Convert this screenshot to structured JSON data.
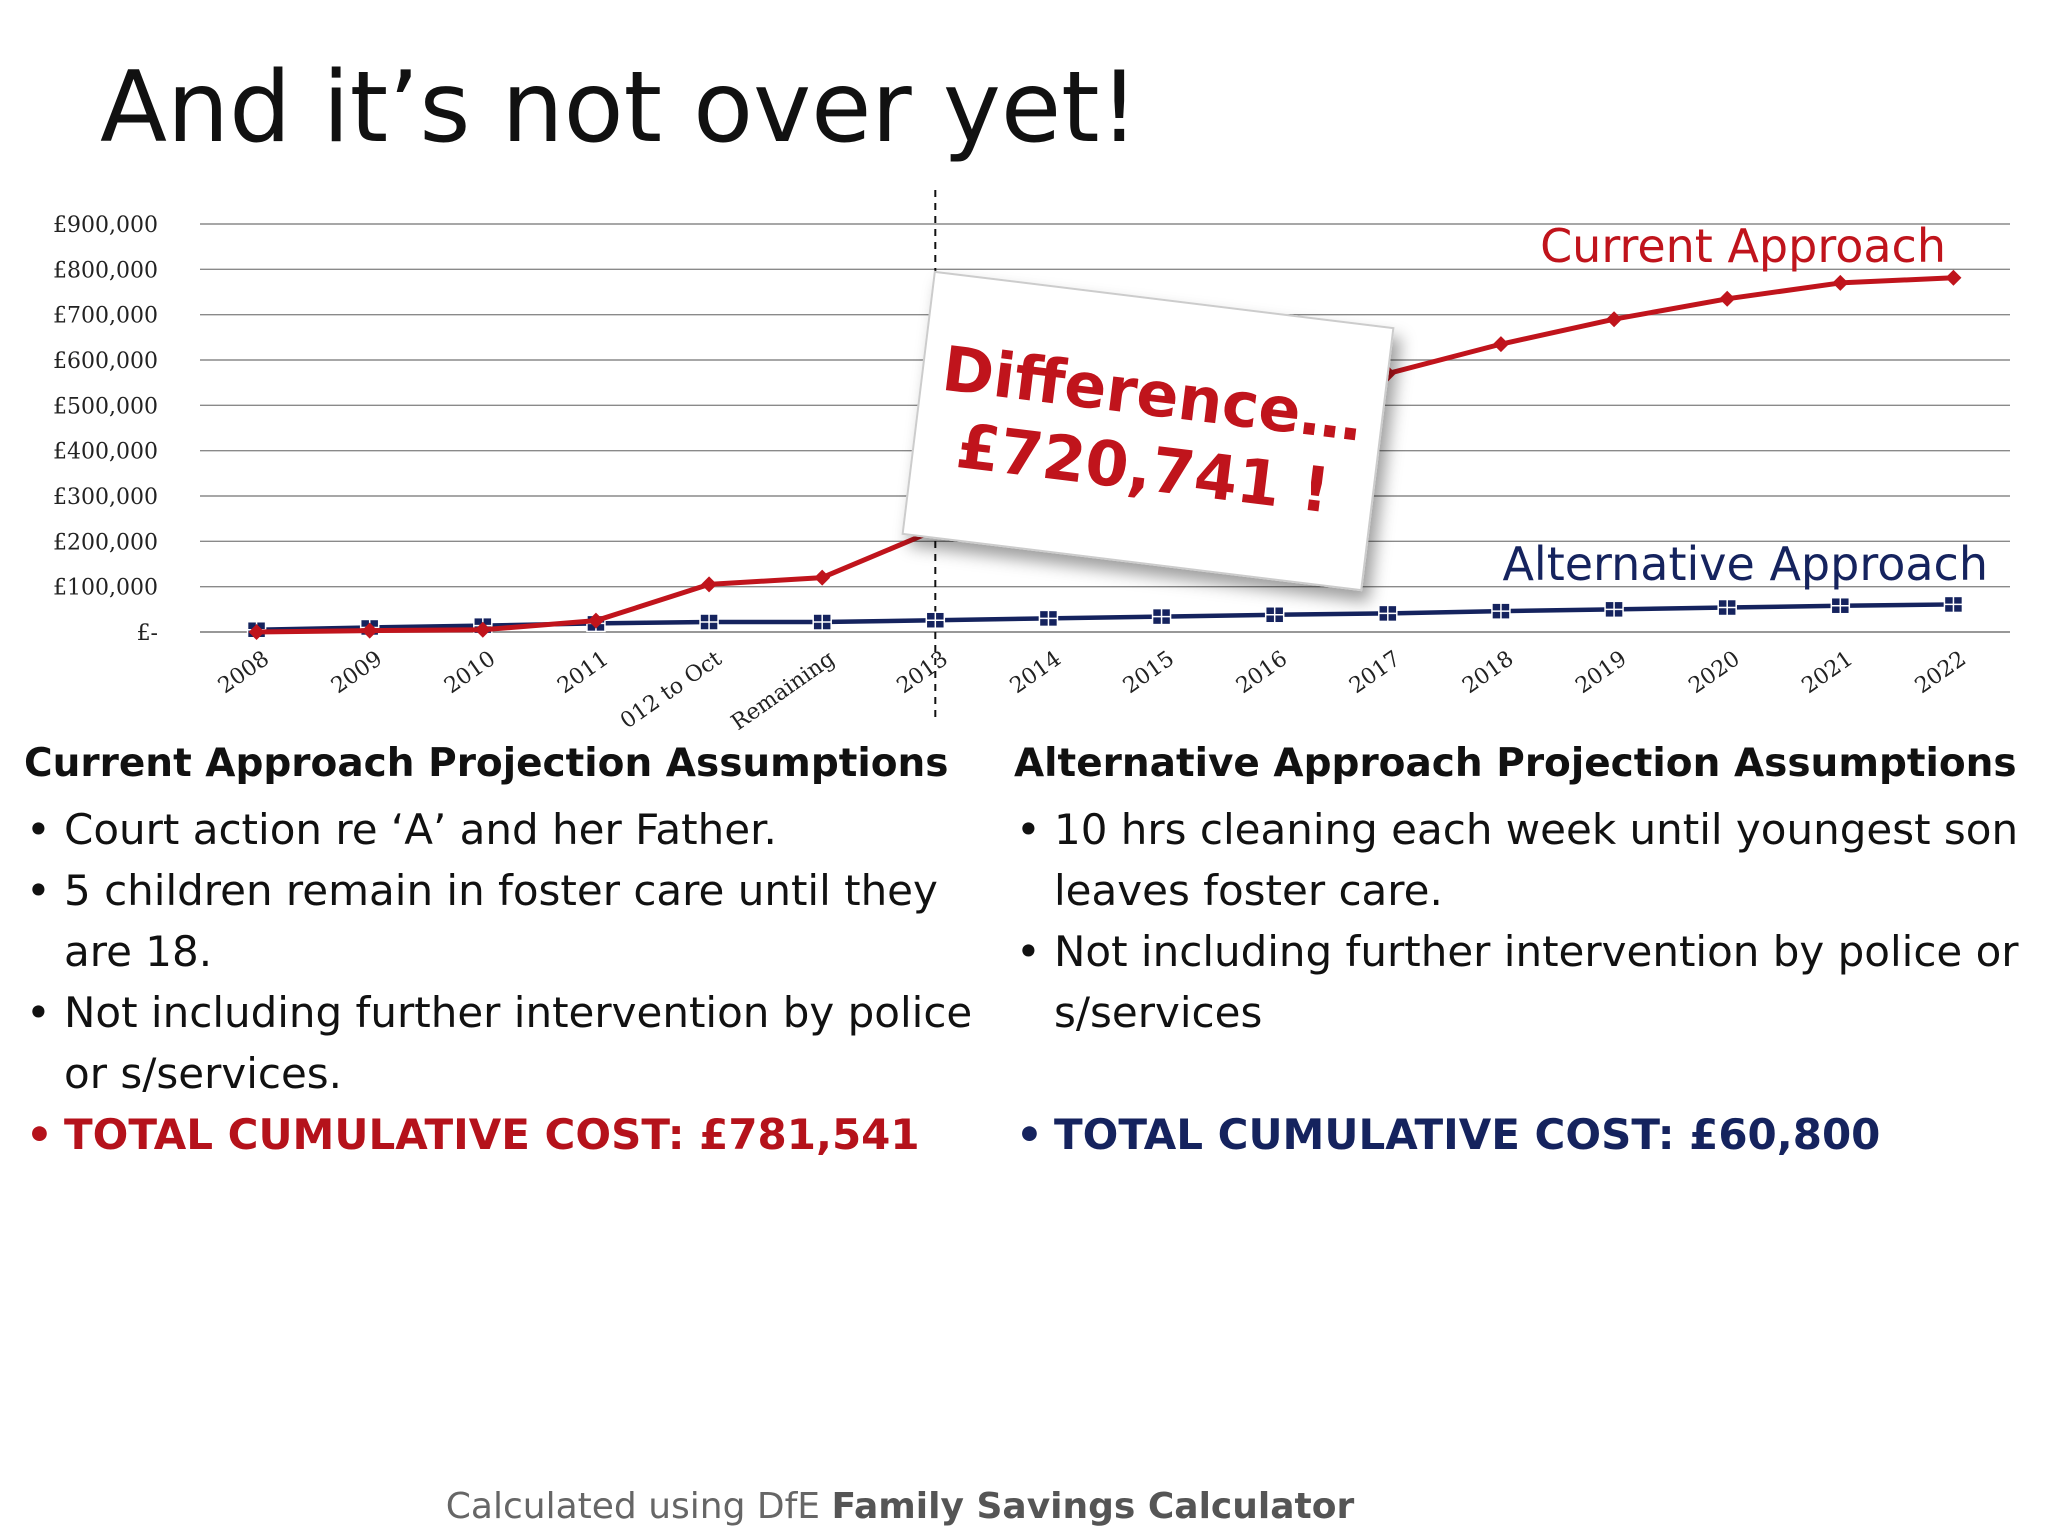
{
  "slide": {
    "title": "And it’s not over yet!",
    "difference_line1": "Difference…",
    "difference_line2": "£720,741 !"
  },
  "chart_data": {
    "type": "line",
    "categories": [
      "2008",
      "2009",
      "2010",
      "2011",
      "2012 to Oct",
      "Remaining",
      "2013",
      "2014",
      "2015",
      "2016",
      "2017",
      "2018",
      "2019",
      "2020",
      "2021",
      "2022"
    ],
    "tick_labels": [
      "2008",
      "2009",
      "2010",
      "2011",
      "012 to Oct",
      "Remaining",
      "2013",
      "2014",
      "2015",
      "2016",
      "2017",
      "2018",
      "2019",
      "2020",
      "2021",
      "2022"
    ],
    "y_ticks": [
      "£-",
      "£100,000",
      "£200,000",
      "£300,000",
      "£400,000",
      "£500,000",
      "£600,000",
      "£700,000",
      "£800,000",
      "£900,000"
    ],
    "ylim": [
      0,
      900000
    ],
    "grid": true,
    "divider_after_category": "2013",
    "series": [
      {
        "name": "Current Approach",
        "color": "#c0141c",
        "marker": "diamond",
        "values": [
          0,
          3000,
          5000,
          25000,
          105000,
          120000,
          225000,
          330000,
          420000,
          490000,
          570000,
          635000,
          690000,
          735000,
          770000,
          781541
        ]
      },
      {
        "name": "Alternative Approach",
        "color": "#15235e",
        "marker": "square",
        "values": [
          5000,
          10000,
          14000,
          19000,
          22000,
          22000,
          26000,
          30000,
          34000,
          38000,
          41000,
          46000,
          50000,
          54000,
          58000,
          60800
        ]
      }
    ]
  },
  "left_col": {
    "heading": "Current Approach Projection Assumptions",
    "items": [
      "Court action re ‘A’ and her Father.",
      "5 children remain in foster care until they are 18.",
      "Not including further intervention by police or s/services."
    ],
    "total": "TOTAL CUMULATIVE COST: £781,541"
  },
  "right_col": {
    "heading": "Alternative Approach Projection Assumptions",
    "items": [
      "10 hrs cleaning each week until youngest son leaves foster care.",
      "Not including further intervention by police or s/services"
    ],
    "total": "TOTAL CUMULATIVE COST: £60,800"
  },
  "footer": {
    "prefix": "Calculated using DfE ",
    "bold": "Family Savings Calculator"
  }
}
